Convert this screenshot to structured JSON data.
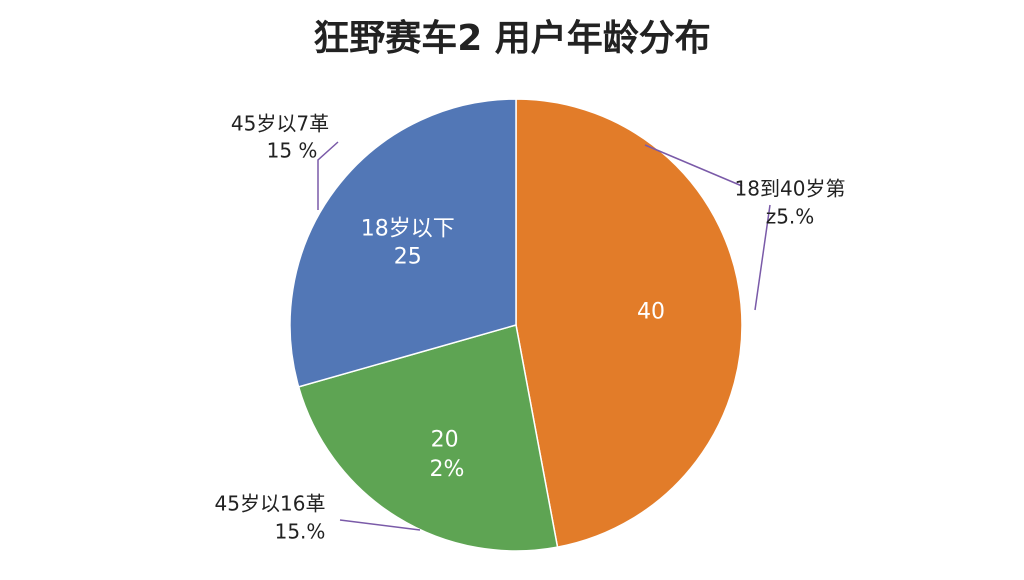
{
  "chart_data": {
    "type": "pie",
    "title": "狂野赛车2 用户年龄分布",
    "categories": [
      null,
      null,
      "18岁以下"
    ],
    "values": [
      40,
      20,
      25
    ],
    "colors": [
      "#e27c29",
      "#5ea453",
      "#5277b6"
    ],
    "annotations": [
      "2%",
      "45岁以7革",
      "15 %",
      "18到40岁第",
      "z5.%",
      "45岁以16革",
      "15.%"
    ]
  }
}
